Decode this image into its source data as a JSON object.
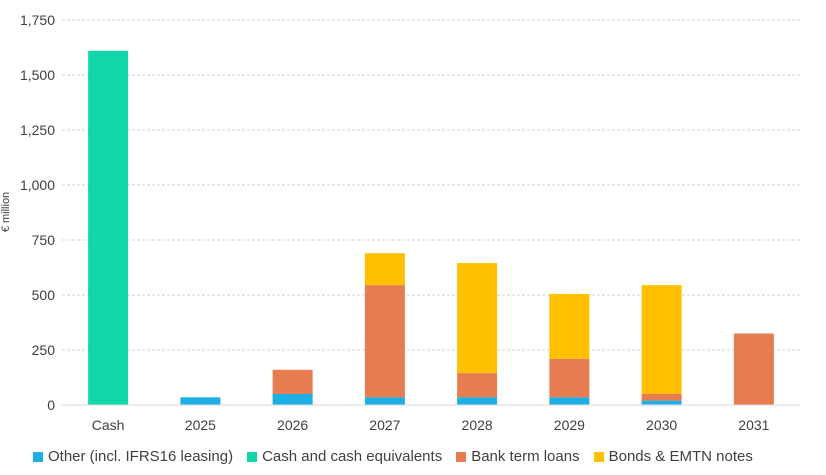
{
  "chart_data": {
    "type": "bar",
    "stacked": true,
    "title": "",
    "xlabel": "",
    "ylabel": "€ million",
    "ylim": [
      0,
      1750
    ],
    "yticks": [
      0,
      250,
      500,
      750,
      1000,
      1250,
      1500,
      1750
    ],
    "ytick_labels": [
      "0",
      "250",
      "500",
      "750",
      "1,000",
      "1,250",
      "1,500",
      "1,750"
    ],
    "grid": true,
    "legend_position": "bottom",
    "categories": [
      "Cash",
      "2025",
      "2026",
      "2027",
      "2028",
      "2029",
      "2030",
      "2031"
    ],
    "series": [
      {
        "name": "Other (incl. IFRS16 leasing)",
        "color": "#1EAEE6",
        "values": [
          0,
          35,
          50,
          35,
          35,
          35,
          20,
          0
        ]
      },
      {
        "name": "Cash and cash equivalents",
        "color": "#11D6A7",
        "values": [
          1610,
          0,
          0,
          0,
          0,
          0,
          0,
          0
        ]
      },
      {
        "name": "Bank term loans",
        "color": "#E67C50",
        "values": [
          0,
          0,
          110,
          510,
          110,
          175,
          30,
          325
        ]
      },
      {
        "name": "Bonds & EMTN notes",
        "color": "#FFC000",
        "values": [
          0,
          0,
          0,
          145,
          500,
          295,
          495,
          0
        ]
      }
    ]
  }
}
